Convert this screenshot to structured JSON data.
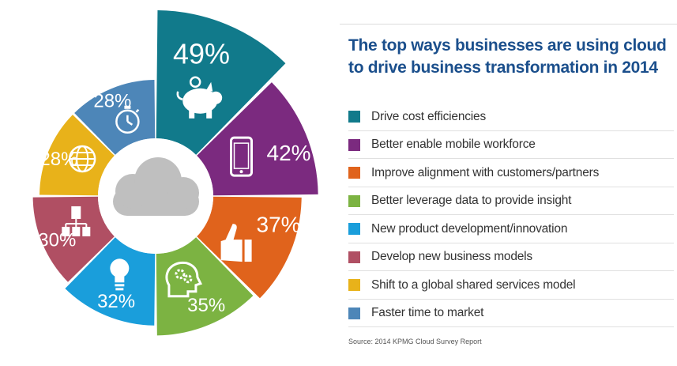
{
  "title": "The top ways businesses are using cloud to drive business transformation in 2014",
  "source": "Source: 2014 KPMG Cloud Survey Report",
  "chart_data": {
    "type": "pie",
    "subtype": "polar-area",
    "title": "The top ways businesses are using cloud to drive business transformation in 2014",
    "unit": "%",
    "categories": [
      "Drive cost efficiencies",
      "Better enable mobile workforce",
      "Improve alignment with customers/partners",
      "Better leverage data to provide insight",
      "New product development/innovation",
      "Develop new business models",
      "Shift to a global shared services model",
      "Faster time to market"
    ],
    "values": [
      49,
      42,
      37,
      35,
      32,
      30,
      28,
      28
    ],
    "value_labels": [
      "49%",
      "42%",
      "37%",
      "35%",
      "32%",
      "30%",
      "28%",
      "28%"
    ],
    "colors": [
      "#117a8b",
      "#7b2a7f",
      "#e0631c",
      "#7cb342",
      "#1a9edb",
      "#b04f63",
      "#e8b21a",
      "#4d86b8"
    ],
    "icons": [
      "piggy-bank-icon",
      "smartphone-icon",
      "thumbs-up-icon",
      "head-gears-icon",
      "lightbulb-icon",
      "buildings-icon",
      "globe-icon",
      "stopwatch-icon"
    ],
    "center_icon": "cloud-icon",
    "legend": "right"
  }
}
